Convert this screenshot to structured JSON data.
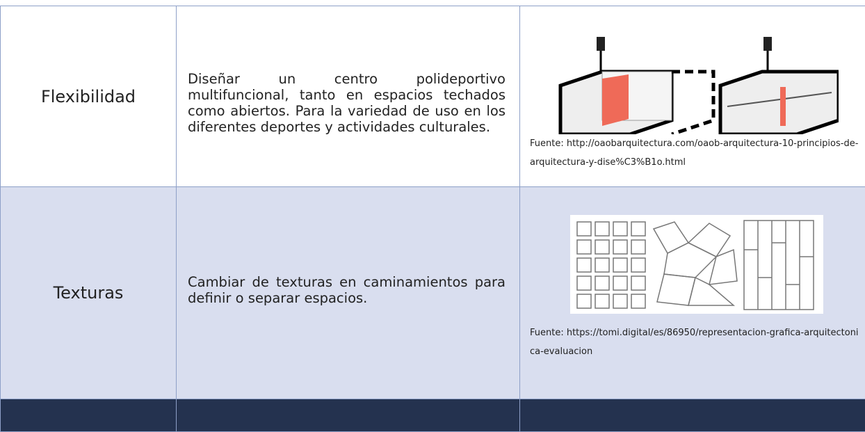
{
  "table": {
    "rows": [
      {
        "label": "Flexibilidad",
        "description": "Diseñar un centro polideportivo multifuncional, tanto en espacios techados como abiertos. Para la variedad de uso en los diferentes deportes y actividades culturales.",
        "source": "Fuente: http://oaobarquitectura.com/oaob-arquitectura-10-principios-de-arquitectura-y-dise%C3%B1o.html"
      },
      {
        "label": "Texturas",
        "description": "Cambiar de texturas en caminamientos para definir o separar espacios.",
        "source": "Fuente: https://tomi.digital/es/86950/representacion-grafica-arquitectonica-evaluacion"
      }
    ]
  }
}
